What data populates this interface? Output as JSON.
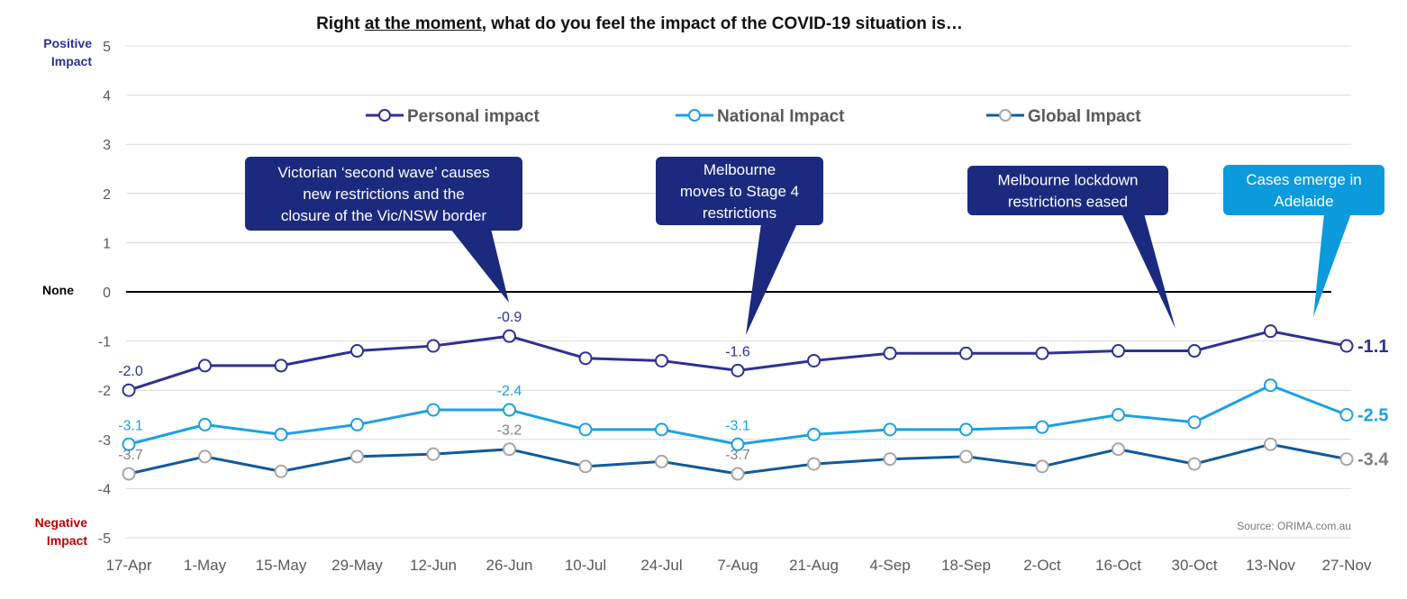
{
  "title": {
    "before": "Right ",
    "underlined": "at the moment",
    "after": ", what do you feel the impact of the COVID-19 situation is…"
  },
  "labels": {
    "positive_line1": "Positive",
    "positive_line2": "Impact",
    "negative_line1": "Negative",
    "negative_line2": "Impact",
    "none": "None"
  },
  "source": "Source: ORIMA.com.au",
  "colors": {
    "personal": "#2E3192",
    "national": "#1BA1E2",
    "global": "#0F5A9C",
    "positive_label": "#2E3192",
    "negative_label": "#C00000",
    "callout_dark": "#1B2A7E",
    "callout_light": "#0B9BDC",
    "grid": "#d9d9d9"
  },
  "chart_data": {
    "type": "line",
    "x": [
      "17-Apr",
      "1-May",
      "15-May",
      "29-May",
      "12-Jun",
      "26-Jun",
      "10-Jul",
      "24-Jul",
      "7-Aug",
      "21-Aug",
      "4-Sep",
      "18-Sep",
      "2-Oct",
      "16-Oct",
      "30-Oct",
      "13-Nov",
      "27-Nov"
    ],
    "ylim": [
      -5,
      5
    ],
    "yticks": [
      5,
      4,
      3,
      2,
      1,
      0,
      -1,
      -2,
      -3,
      -4,
      -5
    ],
    "legend_position": "top",
    "series": [
      {
        "name": "Personal impact",
        "values": [
          -2.0,
          -1.5,
          -1.5,
          -1.2,
          -1.1,
          -0.9,
          -1.35,
          -1.4,
          -1.6,
          -1.4,
          -1.25,
          -1.25,
          -1.25,
          -1.2,
          -1.2,
          -0.8,
          -1.1
        ]
      },
      {
        "name": "National Impact",
        "values": [
          -3.1,
          -2.7,
          -2.9,
          -2.7,
          -2.4,
          -2.4,
          -2.8,
          -2.8,
          -3.1,
          -2.9,
          -2.8,
          -2.8,
          -2.75,
          -2.5,
          -2.65,
          -1.9,
          -2.5
        ]
      },
      {
        "name": "Global Impact",
        "values": [
          -3.7,
          -3.35,
          -3.65,
          -3.35,
          -3.3,
          -3.2,
          -3.55,
          -3.45,
          -3.7,
          -3.5,
          -3.4,
          -3.35,
          -3.55,
          -3.2,
          -3.5,
          -3.1,
          -3.4
        ]
      }
    ],
    "data_labels": [
      {
        "series": 0,
        "index": 0,
        "text": "-2.0"
      },
      {
        "series": 0,
        "index": 5,
        "text": "-0.9"
      },
      {
        "series": 0,
        "index": 8,
        "text": "-1.6"
      },
      {
        "series": 1,
        "index": 0,
        "text": "-3.1"
      },
      {
        "series": 1,
        "index": 5,
        "text": "-2.4"
      },
      {
        "series": 1,
        "index": 8,
        "text": "-3.1"
      },
      {
        "series": 2,
        "index": 0,
        "text": "-3.7"
      },
      {
        "series": 2,
        "index": 5,
        "text": "-3.2"
      },
      {
        "series": 2,
        "index": 8,
        "text": "-3.7"
      }
    ],
    "end_labels": [
      "-1.1",
      "-2.5",
      "-3.4"
    ],
    "annotations": [
      {
        "lines": [
          "Victorian ‘second wave’ causes",
          "new restrictions and the",
          "closure of the Vic/NSW border"
        ],
        "style": "dark",
        "x_index": 5
      },
      {
        "lines": [
          "Melbourne",
          "moves to Stage 4",
          "restrictions"
        ],
        "style": "dark",
        "x_index": 8
      },
      {
        "lines": [
          "Melbourne lockdown",
          "restrictions eased"
        ],
        "style": "dark",
        "x_index": 14
      },
      {
        "lines": [
          "Cases emerge in",
          "Adelaide"
        ],
        "style": "light",
        "x_index": 15
      }
    ]
  }
}
